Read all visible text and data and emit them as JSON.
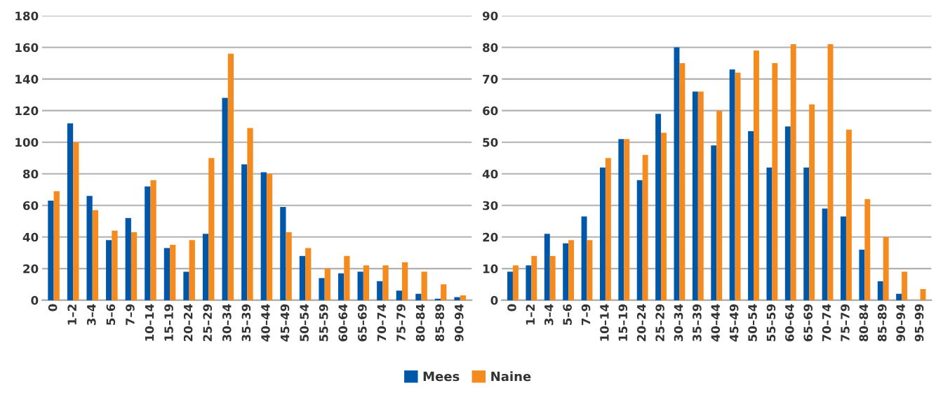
{
  "chart_data": [
    {
      "type": "bar",
      "categories": [
        "0",
        "1–2",
        "3–4",
        "5–6",
        "7–9",
        "10–14",
        "15–19",
        "20–24",
        "25–29",
        "30–34",
        "35–39",
        "40–44",
        "45–49",
        "50–54",
        "55–59",
        "60–64",
        "65–69",
        "70–74",
        "75–79",
        "80–84",
        "85–89",
        "90–94"
      ],
      "series": [
        {
          "name": "Mees",
          "color": "#0057a8",
          "values": [
            63,
            112,
            66,
            38,
            52,
            72,
            33,
            18,
            42,
            128,
            86,
            81,
            59,
            28,
            14,
            17,
            18,
            12,
            6,
            4,
            1,
            2
          ]
        },
        {
          "name": "Naine",
          "color": "#f58b1f",
          "values": [
            69,
            100,
            57,
            44,
            43,
            76,
            35,
            38,
            90,
            156,
            109,
            80,
            43,
            33,
            20,
            28,
            22,
            22,
            24,
            18,
            10,
            3
          ]
        }
      ],
      "ylim": [
        0,
        180
      ],
      "yticks": [
        0,
        20,
        40,
        60,
        80,
        100,
        120,
        140,
        160,
        180
      ],
      "grid": "y",
      "legend": "bottom"
    },
    {
      "type": "bar",
      "categories": [
        "0",
        "1–2",
        "3–4",
        "5–6",
        "7–9",
        "10–14",
        "15–19",
        "20–24",
        "25–29",
        "30–34",
        "35–39",
        "40–44",
        "45–49",
        "50–54",
        "55–59",
        "60–64",
        "65–69",
        "70–74",
        "75–79",
        "80–84",
        "85–89",
        "90–94",
        "95–99"
      ],
      "series": [
        {
          "name": "Mees",
          "color": "#0057a8",
          "values": [
            9,
            11,
            21,
            18,
            26.5,
            42,
            51,
            38,
            59,
            80,
            66,
            49,
            73,
            53.5,
            42,
            55,
            42,
            29,
            26.5,
            16,
            6,
            2,
            null
          ]
        },
        {
          "name": "Naine",
          "color": "#f58b1f",
          "values": [
            11,
            14,
            14,
            19,
            19,
            45,
            51,
            46,
            53,
            75,
            66,
            60,
            72,
            79,
            75,
            81,
            62,
            81,
            54,
            32,
            20,
            9,
            3.5
          ]
        }
      ],
      "ylim": [
        0,
        90
      ],
      "yticks": [
        0,
        10,
        20,
        30,
        40,
        50,
        60,
        70,
        80,
        90
      ],
      "grid": "y",
      "legend": "bottom"
    }
  ]
}
